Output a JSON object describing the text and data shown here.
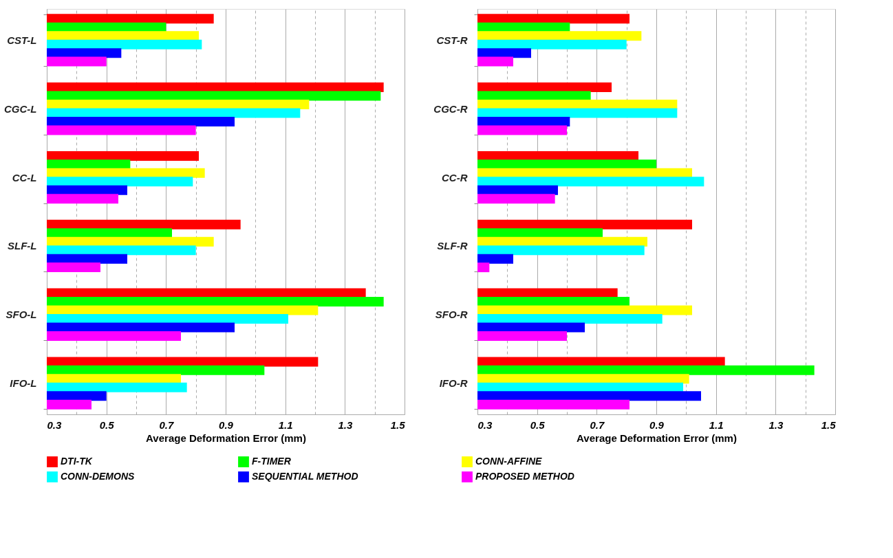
{
  "chart_data": [
    {
      "type": "bar",
      "orientation": "horizontal",
      "categories": [
        "CST-L",
        "CGC-L",
        "CC-L",
        "SLF-L",
        "SFO-L",
        "IFO-L"
      ],
      "series": [
        {
          "name": "DTI-TK",
          "color": "#ff0000",
          "values": [
            0.86,
            1.43,
            0.81,
            0.95,
            1.37,
            1.21
          ]
        },
        {
          "name": "F-TIMER",
          "color": "#00ff00",
          "values": [
            0.7,
            1.42,
            0.58,
            0.72,
            1.43,
            1.03
          ]
        },
        {
          "name": "CONN-AFFINE",
          "color": "#ffff00",
          "values": [
            0.81,
            1.18,
            0.83,
            0.86,
            1.21,
            0.75
          ]
        },
        {
          "name": "CONN-DEMONS",
          "color": "#00ffff",
          "values": [
            0.82,
            1.15,
            0.79,
            0.8,
            1.11,
            0.77
          ]
        },
        {
          "name": "SEQUENTIAL METHOD",
          "color": "#0000ff",
          "values": [
            0.55,
            0.93,
            0.57,
            0.57,
            0.93,
            0.5
          ]
        },
        {
          "name": "PROPOSED METHOD",
          "color": "#ff00ff",
          "values": [
            0.5,
            0.8,
            0.54,
            0.48,
            0.75,
            0.45
          ]
        }
      ],
      "xlabel": "Average Deformation Error (mm)",
      "xlim": [
        0.3,
        1.5
      ],
      "xticks": [
        0.3,
        {
          "value": 0.4,
          "label": null
        },
        0.5,
        {
          "value": 0.6,
          "label": null
        },
        0.7,
        {
          "value": 0.8,
          "label": null
        },
        0.9,
        {
          "value": 1.0,
          "label": null
        },
        1.1,
        {
          "value": 1.2,
          "label": null
        },
        1.3,
        {
          "value": 1.4,
          "label": null
        },
        1.5
      ],
      "grid": "x",
      "legend": "bottom"
    },
    {
      "type": "bar",
      "orientation": "horizontal",
      "categories": [
        "CST-R",
        "CGC-R",
        "CC-R",
        "SLF-R",
        "SFO-R",
        "IFO-R"
      ],
      "series": [
        {
          "name": "DTI-TK",
          "color": "#ff0000",
          "values": [
            0.81,
            0.75,
            0.84,
            1.02,
            0.77,
            1.13
          ]
        },
        {
          "name": "F-TIMER",
          "color": "#00ff00",
          "values": [
            0.61,
            0.68,
            0.9,
            0.72,
            0.81,
            1.43
          ]
        },
        {
          "name": "CONN-AFFINE",
          "color": "#ffff00",
          "values": [
            0.85,
            0.97,
            1.02,
            0.87,
            1.02,
            1.01
          ]
        },
        {
          "name": "CONN-DEMONS",
          "color": "#00ffff",
          "values": [
            0.8,
            0.97,
            1.06,
            0.86,
            0.92,
            0.99
          ]
        },
        {
          "name": "SEQUENTIAL METHOD",
          "color": "#0000ff",
          "values": [
            0.48,
            0.61,
            0.57,
            0.42,
            0.66,
            1.05
          ]
        },
        {
          "name": "PROPOSED METHOD",
          "color": "#ff00ff",
          "values": [
            0.42,
            0.6,
            0.56,
            0.34,
            0.6,
            0.81
          ]
        }
      ],
      "xlabel": "Average Deformation Error (mm)",
      "xlim": [
        0.3,
        1.5
      ],
      "xticks": [
        0.3,
        {
          "value": 0.4,
          "label": null
        },
        0.5,
        {
          "value": 0.6,
          "label": null
        },
        0.7,
        {
          "value": 0.8,
          "label": null
        },
        0.9,
        {
          "value": 1.0,
          "label": null
        },
        1.1,
        {
          "value": 1.2,
          "label": null
        },
        1.3,
        {
          "value": 1.4,
          "label": null
        },
        1.5
      ],
      "grid": "x",
      "legend": "bottom"
    }
  ]
}
